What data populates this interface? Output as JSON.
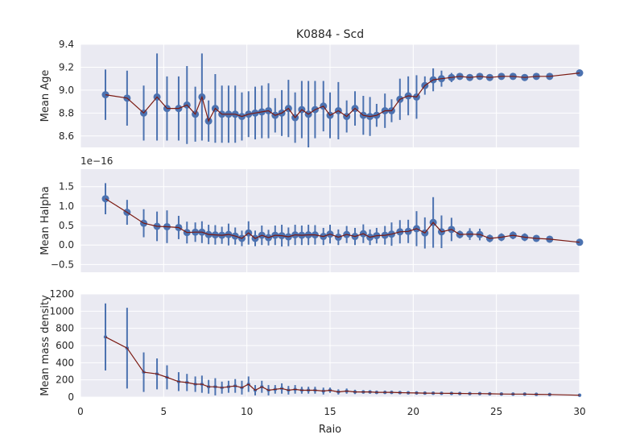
{
  "chart_data": {
    "type": "errorbar",
    "title": "K0884 - Scd",
    "xlabel": "Raio",
    "xlim": [
      0,
      30
    ],
    "xticks": [
      0,
      5,
      10,
      15,
      20,
      25,
      30
    ],
    "colors": {
      "points": "#4c72b0",
      "errorbars": "#4c72b0",
      "line": "#7b1a12",
      "background": "#eaeaf2",
      "grid": "#ffffff"
    },
    "grid": true,
    "panels": [
      {
        "name": "age",
        "ylabel": "Mean Age",
        "ylim": [
          8.5,
          9.4
        ],
        "yticks": [
          "8.6",
          "8.8",
          "9.0",
          "9.2",
          "9.4"
        ],
        "yticks_values": [
          8.6,
          8.8,
          9.0,
          9.2,
          9.4
        ],
        "offset_label": "",
        "marker": "large",
        "x": [
          1.5,
          2.8,
          3.8,
          4.6,
          5.2,
          5.9,
          6.4,
          6.9,
          7.3,
          7.7,
          8.1,
          8.5,
          8.9,
          9.3,
          9.7,
          10.1,
          10.5,
          10.9,
          11.3,
          11.7,
          12.1,
          12.5,
          12.9,
          13.3,
          13.7,
          14.1,
          14.6,
          15.0,
          15.5,
          16.0,
          16.5,
          17.0,
          17.4,
          17.8,
          18.3,
          18.7,
          19.2,
          19.7,
          20.2,
          20.7,
          21.2,
          21.7,
          22.3,
          22.8,
          23.4,
          24.0,
          24.6,
          25.3,
          26.0,
          26.7,
          27.4,
          28.2,
          30.0
        ],
        "y": [
          8.96,
          8.93,
          8.8,
          8.94,
          8.84,
          8.84,
          8.87,
          8.79,
          8.94,
          8.73,
          8.84,
          8.79,
          8.79,
          8.79,
          8.77,
          8.79,
          8.8,
          8.81,
          8.82,
          8.78,
          8.8,
          8.84,
          8.76,
          8.83,
          8.79,
          8.83,
          8.86,
          8.78,
          8.82,
          8.77,
          8.84,
          8.78,
          8.77,
          8.78,
          8.82,
          8.82,
          8.92,
          8.95,
          8.94,
          9.04,
          9.09,
          9.1,
          9.11,
          9.12,
          9.11,
          9.12,
          9.11,
          9.12,
          9.12,
          9.11,
          9.12,
          9.12,
          9.15
        ],
        "err": [
          0.22,
          0.24,
          0.24,
          0.38,
          0.28,
          0.28,
          0.34,
          0.24,
          0.38,
          0.18,
          0.3,
          0.25,
          0.25,
          0.25,
          0.21,
          0.2,
          0.23,
          0.23,
          0.24,
          0.15,
          0.2,
          0.25,
          0.22,
          0.25,
          0.29,
          0.25,
          0.22,
          0.2,
          0.25,
          0.14,
          0.15,
          0.17,
          0.17,
          0.1,
          0.15,
          0.1,
          0.18,
          0.17,
          0.19,
          0.08,
          0.1,
          0.07,
          0.04,
          0.03,
          0.02,
          0.02,
          0.02,
          0.02,
          0.02,
          0.02,
          0.02,
          0.02,
          0.02
        ]
      },
      {
        "name": "halpha",
        "ylabel": "Mean Halpha",
        "ylim": [
          -0.7,
          1.95
        ],
        "yticks": [
          "−0.5",
          "0.0",
          "0.5",
          "1.0",
          "1.5"
        ],
        "yticks_values": [
          -0.5,
          0.0,
          0.5,
          1.0,
          1.5
        ],
        "offset_label": "1e−16",
        "marker": "large",
        "x": [
          1.5,
          2.8,
          3.8,
          4.6,
          5.2,
          5.9,
          6.4,
          6.9,
          7.3,
          7.7,
          8.1,
          8.5,
          8.9,
          9.3,
          9.7,
          10.1,
          10.5,
          10.9,
          11.3,
          11.7,
          12.1,
          12.5,
          12.9,
          13.3,
          13.7,
          14.1,
          14.6,
          15.0,
          15.5,
          16.0,
          16.5,
          17.0,
          17.4,
          17.8,
          18.3,
          18.7,
          19.2,
          19.7,
          20.2,
          20.7,
          21.2,
          21.7,
          22.3,
          22.8,
          23.4,
          24.0,
          24.6,
          25.3,
          26.0,
          26.7,
          27.4,
          28.2,
          30.0
        ],
        "y": [
          1.19,
          0.84,
          0.56,
          0.48,
          0.47,
          0.45,
          0.32,
          0.33,
          0.33,
          0.27,
          0.26,
          0.25,
          0.27,
          0.23,
          0.17,
          0.31,
          0.17,
          0.25,
          0.19,
          0.25,
          0.24,
          0.21,
          0.26,
          0.25,
          0.26,
          0.26,
          0.22,
          0.28,
          0.2,
          0.27,
          0.22,
          0.29,
          0.2,
          0.24,
          0.25,
          0.28,
          0.34,
          0.35,
          0.42,
          0.31,
          0.58,
          0.34,
          0.4,
          0.27,
          0.28,
          0.27,
          0.17,
          0.2,
          0.25,
          0.2,
          0.17,
          0.15,
          0.07
        ],
        "err": [
          0.4,
          0.32,
          0.36,
          0.38,
          0.42,
          0.3,
          0.28,
          0.25,
          0.28,
          0.25,
          0.25,
          0.22,
          0.28,
          0.22,
          0.2,
          0.3,
          0.2,
          0.25,
          0.2,
          0.25,
          0.28,
          0.24,
          0.26,
          0.25,
          0.26,
          0.25,
          0.22,
          0.24,
          0.2,
          0.22,
          0.22,
          0.24,
          0.2,
          0.2,
          0.24,
          0.3,
          0.3,
          0.3,
          0.45,
          0.4,
          0.65,
          0.42,
          0.3,
          0.1,
          0.15,
          0.15,
          0.1,
          0.1,
          0.1,
          0.1,
          0.05,
          0.05,
          0.05
        ]
      },
      {
        "name": "density",
        "ylabel": "Mean mass density",
        "ylim": [
          0,
          1200
        ],
        "yticks": [
          "0",
          "200",
          "400",
          "600",
          "800",
          "1000",
          "1200"
        ],
        "yticks_values": [
          0,
          200,
          400,
          600,
          800,
          1000,
          1200
        ],
        "offset_label": "",
        "marker": "small",
        "x": [
          1.5,
          2.8,
          3.8,
          4.6,
          5.2,
          5.9,
          6.4,
          6.9,
          7.3,
          7.7,
          8.1,
          8.5,
          8.9,
          9.3,
          9.7,
          10.1,
          10.5,
          10.9,
          11.3,
          11.7,
          12.1,
          12.5,
          12.9,
          13.3,
          13.7,
          14.1,
          14.6,
          15.0,
          15.5,
          16.0,
          16.5,
          17.0,
          17.4,
          17.8,
          18.3,
          18.7,
          19.2,
          19.7,
          20.2,
          20.7,
          21.2,
          21.7,
          22.3,
          22.8,
          23.4,
          24.0,
          24.6,
          25.3,
          26.0,
          26.7,
          27.4,
          28.2,
          30.0
        ],
        "y": [
          700,
          570,
          290,
          270,
          230,
          180,
          170,
          150,
          150,
          120,
          120,
          110,
          120,
          130,
          110,
          150,
          80,
          120,
          80,
          90,
          100,
          80,
          90,
          80,
          80,
          80,
          70,
          80,
          60,
          70,
          60,
          60,
          60,
          55,
          55,
          55,
          52,
          50,
          48,
          46,
          45,
          44,
          43,
          42,
          40,
          40,
          38,
          36,
          35,
          35,
          32,
          30,
          22
        ],
        "err": [
          390,
          470,
          230,
          180,
          140,
          110,
          100,
          90,
          100,
          80,
          100,
          70,
          70,
          80,
          80,
          90,
          60,
          70,
          60,
          50,
          60,
          50,
          50,
          40,
          40,
          40,
          40,
          30,
          30,
          30,
          25,
          20,
          20,
          10,
          10,
          10,
          8,
          8,
          8,
          8,
          6,
          6,
          6,
          6,
          5,
          5,
          5,
          5,
          5,
          5,
          5,
          5,
          5
        ]
      }
    ]
  }
}
